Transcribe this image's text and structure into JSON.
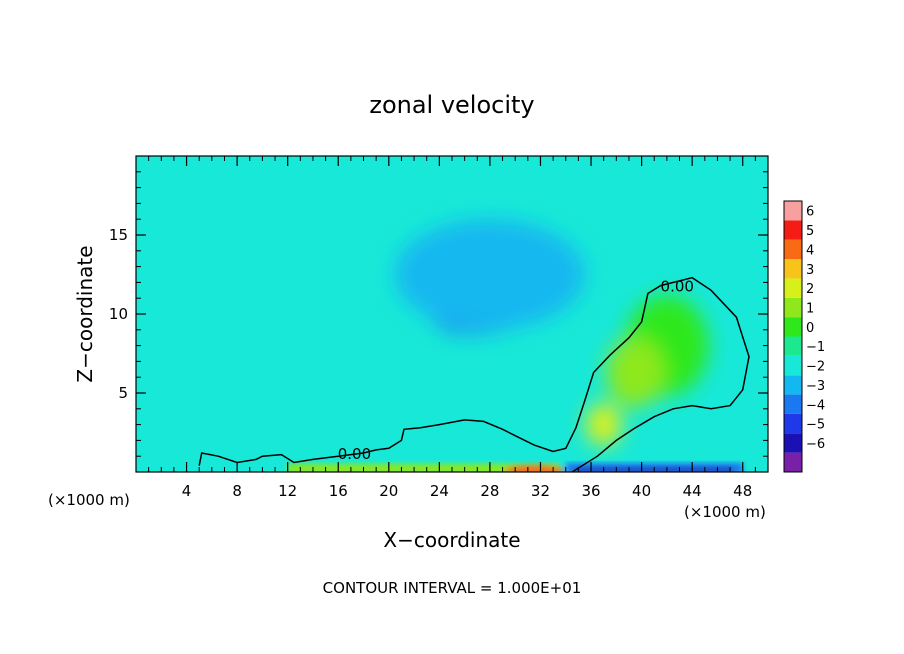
{
  "chart_data": {
    "type": "heatmap",
    "title": "zonal velocity",
    "xlabel": "X−coordinate",
    "ylabel": "Z−coordinate",
    "x_unit_left": "(×1000 m)",
    "x_unit_right": "(×1000 m)",
    "xlim": [
      0,
      50
    ],
    "ylim": [
      0,
      20
    ],
    "x_ticks": [
      4,
      8,
      12,
      16,
      20,
      24,
      28,
      32,
      36,
      40,
      44,
      48
    ],
    "x_tick_labels": [
      "4",
      "8",
      "12",
      "16",
      "20",
      "24",
      "28",
      "32",
      "36",
      "40",
      "44",
      "48"
    ],
    "y_ticks": [
      5,
      10,
      15
    ],
    "y_tick_labels": [
      "5",
      "10",
      "15"
    ],
    "contour_label": "0.00",
    "footnote": "CONTOUR INTERVAL = 1.000E+01",
    "colorbar": {
      "levels": [
        -6,
        -5,
        -4,
        -3,
        -2,
        -1,
        0,
        1,
        2,
        3,
        4,
        5,
        6
      ],
      "labels": [
        "6",
        "5",
        "4",
        "3",
        "2",
        "1",
        "0",
        "−1",
        "−2",
        "−3",
        "−4",
        "−5",
        "−6"
      ],
      "colors": [
        "#7a1fa8",
        "#1a10b4",
        "#1f38e8",
        "#1a78f0",
        "#14b8f0",
        "#18e8d8",
        "#1ce890",
        "#2ee81c",
        "#8ee81c",
        "#d8f01a",
        "#f8c41a",
        "#f86a14",
        "#f41c14",
        "#f8a0a0"
      ]
    },
    "background_value": -0.5,
    "features": [
      {
        "kind": "negative_core",
        "x": 29,
        "z": 10.5,
        "value": -2.5
      },
      {
        "kind": "negative_region",
        "x": 28,
        "z": 12.5,
        "value": -1.5
      },
      {
        "kind": "positive_core",
        "x": 42,
        "z": 8,
        "value": 1.3
      },
      {
        "kind": "positive_core",
        "x": 39.5,
        "z": 6.3,
        "value": 2.2
      },
      {
        "kind": "positive_core",
        "x": 37,
        "z": 3,
        "value": 3.0
      },
      {
        "kind": "surface_positive",
        "x_range": [
          12,
          33.5
        ],
        "z": 0.2,
        "max_value": 5
      },
      {
        "kind": "surface_negative",
        "x_range": [
          34,
          48
        ],
        "z": 0.2,
        "min_value": -5
      }
    ],
    "zero_contour": [
      [
        5,
        0.4
      ],
      [
        5.2,
        1.2
      ],
      [
        6.5,
        1.0
      ],
      [
        8,
        0.6
      ],
      [
        9.5,
        0.8
      ],
      [
        10,
        1.0
      ],
      [
        11.5,
        1.1
      ],
      [
        12.5,
        0.6
      ],
      [
        14,
        0.8
      ],
      [
        16,
        1.0
      ],
      [
        18,
        1.2
      ],
      [
        19,
        1.4
      ],
      [
        20,
        1.5
      ],
      [
        21,
        2.0
      ],
      [
        21.2,
        2.7
      ],
      [
        22.5,
        2.8
      ],
      [
        24,
        3.0
      ],
      [
        26,
        3.3
      ],
      [
        27.5,
        3.2
      ],
      [
        29,
        2.7
      ],
      [
        30,
        2.3
      ],
      [
        31.5,
        1.7
      ],
      [
        33,
        1.3
      ],
      [
        34,
        1.5
      ],
      [
        34.8,
        2.8
      ],
      [
        35.5,
        4.5
      ],
      [
        36.2,
        6.3
      ],
      [
        37.5,
        7.4
      ],
      [
        39,
        8.5
      ],
      [
        40,
        9.5
      ],
      [
        40.5,
        11.3
      ],
      [
        41.5,
        11.8
      ],
      [
        44,
        12.3
      ],
      [
        45.5,
        11.5
      ],
      [
        47.5,
        9.8
      ],
      [
        48.5,
        7.3
      ],
      [
        48,
        5.2
      ],
      [
        47,
        4.2
      ],
      [
        45.5,
        4.0
      ],
      [
        44,
        4.2
      ],
      [
        42.5,
        4.0
      ],
      [
        41,
        3.5
      ],
      [
        39.5,
        2.8
      ],
      [
        38,
        2.0
      ],
      [
        36.5,
        1.0
      ],
      [
        34.5,
        0.0
      ]
    ]
  }
}
